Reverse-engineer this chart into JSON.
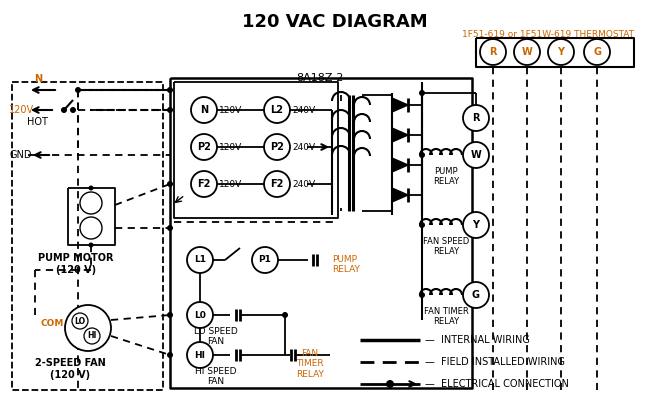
{
  "title": "120 VAC DIAGRAM",
  "bg_color": "#ffffff",
  "text_color": "#000000",
  "orange_color": "#cc6600",
  "thermostat_label": "1F51-619 or 1F51W-619 THERMOSTAT",
  "box_label": "8A18Z-2",
  "thermostat_terminals": [
    "R",
    "W",
    "Y",
    "G"
  ],
  "left_terminals_left": [
    "N",
    "P2",
    "F2"
  ],
  "left_terminals_right": [
    "L2",
    "P2",
    "F2"
  ],
  "left_voltages_left": [
    "120V",
    "120V",
    "120V"
  ],
  "left_voltages_right": [
    "240V",
    "240V",
    "240V"
  ],
  "pump_motor_label": "PUMP MOTOR\n(120 V)",
  "fan_label": "2-SPEED FAN\n(120 V)",
  "relay_coil_labels": [
    "PUMP\nRELAY",
    "FAN SPEED\nRELAY",
    "FAN TIMER\nRELAY"
  ]
}
